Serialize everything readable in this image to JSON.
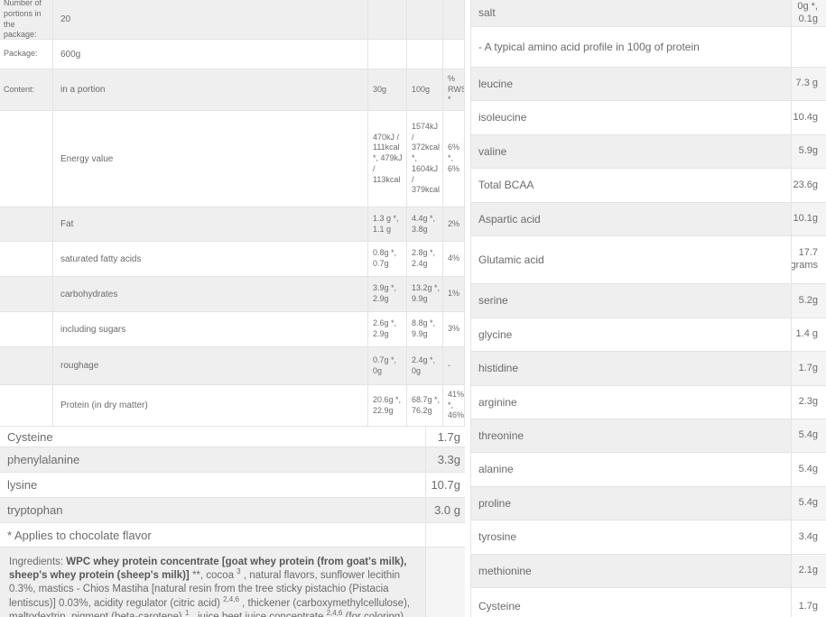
{
  "colors": {
    "row_alt_bg": "#efefef",
    "border": "#e4e4e4",
    "text": "#6b6b6b"
  },
  "nutrition_table": {
    "header_units": {
      "portion": "30g",
      "per100": "100g",
      "rws": "% RWS *"
    },
    "rows": [
      {
        "c1": "Number of portions in the package:",
        "c2": "20",
        "c30": "",
        "c100": "",
        "rws": ""
      },
      {
        "c1": "Package:",
        "c2": "600g",
        "c30": "",
        "c100": "",
        "rws": ""
      },
      {
        "c1": "Content:",
        "c2": "in a portion",
        "c30": "30g",
        "c100": "100g",
        "rws": "% RWS *"
      },
      {
        "c1": "",
        "c2": "Energy value",
        "c30": "470kJ / 111kcal *, 479kJ / 113kcal",
        "c100": "1574kJ / 372kcal *, 1604kJ / 379kcal",
        "rws": "6% *, 6%"
      },
      {
        "c1": "",
        "c2": "Fat",
        "c30": "1.3 g *, 1.1 g",
        "c100": "4.4g *, 3.8g",
        "rws": "2%"
      },
      {
        "c1": "",
        "c2": "saturated fatty acids",
        "c30": "0.8g *, 0.7g",
        "c100": "2.8g *, 2.4g",
        "rws": "4%"
      },
      {
        "c1": "",
        "c2": "carbohydrates",
        "c30": "3.9g *, 2.9g",
        "c100": "13.2g *, 9.9g",
        "rws": "1%"
      },
      {
        "c1": "",
        "c2": "including sugars",
        "c30": "2.6g *, 2.9g",
        "c100": "8.8g *, 9.9g",
        "rws": "3%"
      },
      {
        "c1": "",
        "c2": "roughage",
        "c30": "0.7g *, 0g",
        "c100": "2.4g *, 0g",
        "rws": "-"
      },
      {
        "c1": "",
        "c2": "Protein (in dry matter)",
        "c30": "20.6g *, 22.9g",
        "c100": "68.7g *, 76.2g",
        "rws": "41% *, 46%"
      }
    ]
  },
  "amino_left": {
    "rows": [
      {
        "label": "Cysteine",
        "value": "1.7g"
      },
      {
        "label": "phenylalanine",
        "value": "3.3g"
      },
      {
        "label": "lysine",
        "value": "10.7g"
      },
      {
        "label": "tryptophan",
        "value": "3.0 g"
      }
    ],
    "note": "* Applies to chocolate flavor"
  },
  "ingredients": {
    "segments": [
      {
        "text": "Ingredients: "
      },
      {
        "text": "WPC whey protein concentrate [goat whey protein (from goat's milk), sheep's whey protein (sheep's milk)]",
        "bold": true
      },
      {
        "text": " **, cocoa "
      },
      {
        "text": "3",
        "sup": true
      },
      {
        "text": " , natural flavors, sunflower lecithin 0.3%, mastics - Chios Mastiha [natural resin from the tree sticky pistachio (Pistacia lentiscus)] 0.03%, acidity regulator (citric acid) "
      },
      {
        "text": "2,4,6",
        "sup": true
      },
      {
        "text": " , thickener (carboxymethylcellulose), maltodextrin, pigment (beta-carotene) "
      },
      {
        "text": "1",
        "sup": true
      },
      {
        "text": " , juice beet juice concentrate "
      },
      {
        "text": "2,4,6",
        "sup": true
      },
      {
        "text": " (for coloring), anti-caking agent (silicon dioxide), sweetener (sucralose)."
      }
    ]
  },
  "amino_right": {
    "rows": [
      {
        "label": "salt",
        "value": "0g *, 0.1g"
      },
      {
        "label": "- A typical amino acid profile in 100g of protein",
        "value": ""
      },
      {
        "label": "leucine",
        "value": "7.3 g"
      },
      {
        "label": "isoleucine",
        "value": "10.4g"
      },
      {
        "label": "valine",
        "value": "5.9g"
      },
      {
        "label": "Total BCAA",
        "value": "23.6g"
      },
      {
        "label": "Aspartic acid",
        "value": "10.1g"
      },
      {
        "label": "Glutamic acid",
        "value": "17.7 grams"
      },
      {
        "label": "serine",
        "value": "5.2g"
      },
      {
        "label": "glycine",
        "value": "1.4 g"
      },
      {
        "label": "histidine",
        "value": "1.7g"
      },
      {
        "label": "arginine",
        "value": "2.3g"
      },
      {
        "label": "threonine",
        "value": "5.4g"
      },
      {
        "label": "alanine",
        "value": "5.4g"
      },
      {
        "label": "proline",
        "value": "5.4g"
      },
      {
        "label": "tyrosine",
        "value": "3.4g"
      },
      {
        "label": "methionine",
        "value": "2.1g"
      },
      {
        "label": "Cysteine",
        "value": "1.7g"
      }
    ]
  }
}
